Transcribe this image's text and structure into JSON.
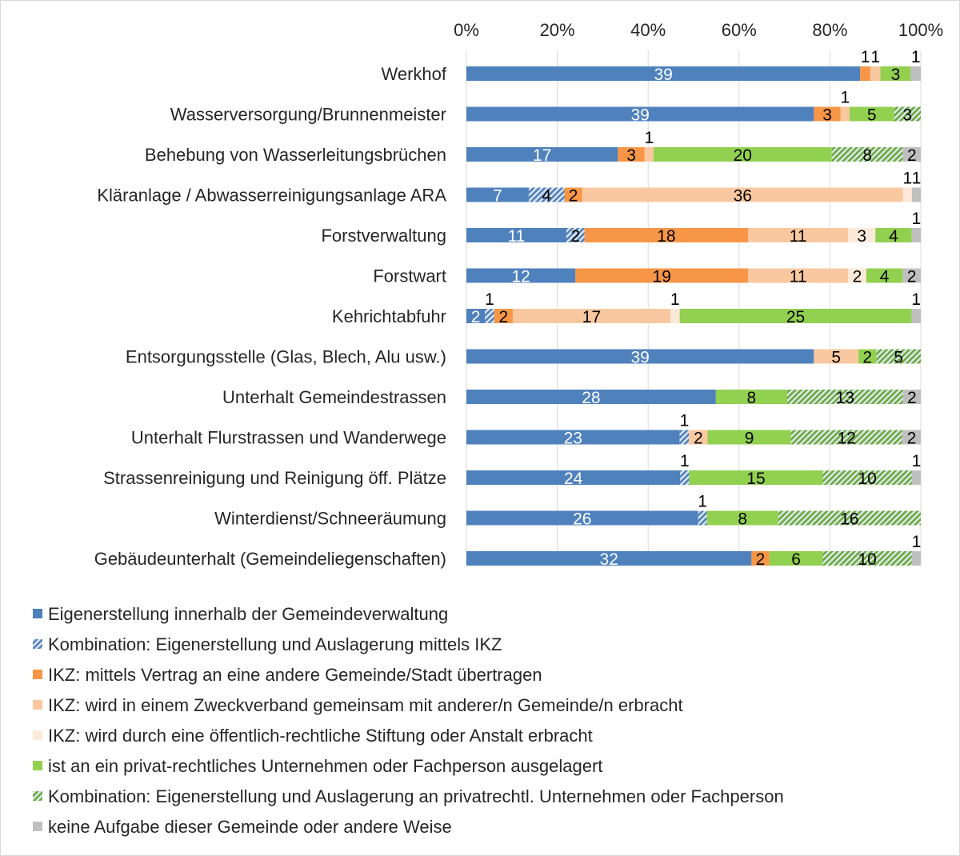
{
  "chart_data": {
    "type": "bar",
    "orientation": "horizontal",
    "stacked": "percent",
    "x_ticks": [
      "0%",
      "20%",
      "40%",
      "60%",
      "80%",
      "100%"
    ],
    "xlim": [
      0,
      100
    ],
    "x_axis_position": "top",
    "grid": true,
    "legend_position": "bottom",
    "categories": [
      "Werkhof",
      "Wasserversorgung/Brunnenmeister",
      "Behebung von Wasserleitungsbrüchen",
      "Kläranlage / Abwasserreinigungsanlage ARA",
      "Forstverwaltung",
      "Forstwart",
      "Kehrichtabfuhr",
      "Entsorgungsstelle (Glas, Blech, Alu usw.)",
      "Unterhalt Gemeindestrassen",
      "Unterhalt Flurstrassen und Wanderwege",
      "Strassenreinigung und Reinigung öff. Plätze",
      "Winterdienst/Schneeräumung",
      "Gebäudeunterhalt (Gemeindeliegenschaften)"
    ],
    "series": [
      {
        "name": "Eigenerstellung innerhalb der Gemeindeverwaltung",
        "color": "#4f81bd",
        "pattern": "solid",
        "label_color": "#ffffff",
        "values": [
          39,
          39,
          17,
          7,
          11,
          12,
          2,
          39,
          28,
          23,
          24,
          26,
          32
        ]
      },
      {
        "name": "Kombination: Eigenerstellung und Auslagerung mittels IKZ",
        "color": "#4f81bd",
        "pattern": "hatch",
        "label_color": "#000000",
        "values": [
          0,
          0,
          0,
          4,
          2,
          0,
          1,
          0,
          0,
          1,
          1,
          1,
          0
        ]
      },
      {
        "name": "IKZ: mittels Vertrag an eine andere Gemeinde/Stadt übertragen",
        "color": "#f79646",
        "pattern": "solid",
        "label_color": "#000000",
        "values": [
          1,
          3,
          3,
          2,
          18,
          19,
          2,
          0,
          0,
          0,
          0,
          0,
          2
        ]
      },
      {
        "name": "IKZ: wird in einem Zweckverband gemeinsam mit anderer/n Gemeinde/n erbracht",
        "color": "#fac8a0",
        "pattern": "solid",
        "label_color": "#000000",
        "values": [
          1,
          1,
          1,
          36,
          11,
          11,
          17,
          5,
          0,
          2,
          0,
          0,
          0
        ]
      },
      {
        "name": "IKZ: wird durch eine öffentlich-rechtliche Stiftung oder Anstalt erbracht",
        "color": "#fde9d9",
        "pattern": "solid",
        "label_color": "#000000",
        "values": [
          0,
          0,
          0,
          1,
          3,
          2,
          1,
          0,
          0,
          0,
          0,
          0,
          0
        ]
      },
      {
        "name": "ist an ein privat-rechtliches Unternehmen oder Fachperson ausgelagert",
        "color": "#92d050",
        "pattern": "solid",
        "label_color": "#000000",
        "values": [
          3,
          5,
          20,
          0,
          4,
          4,
          25,
          2,
          8,
          9,
          15,
          8,
          6
        ]
      },
      {
        "name": "Kombination: Eigenerstellung und Auslagerung an privatrechtl. Unternehmen oder Fachperson",
        "color": "#6aaa3a",
        "pattern": "hatch",
        "label_color": "#000000",
        "values": [
          0,
          3,
          8,
          0,
          0,
          0,
          0,
          5,
          13,
          12,
          10,
          16,
          10
        ]
      },
      {
        "name": "keine Aufgabe dieser Gemeinde oder andere Weise",
        "color": "#bfbfbf",
        "pattern": "solid",
        "label_color": "#000000",
        "values": [
          1,
          0,
          2,
          1,
          1,
          2,
          1,
          0,
          2,
          2,
          1,
          0,
          1
        ]
      }
    ]
  }
}
